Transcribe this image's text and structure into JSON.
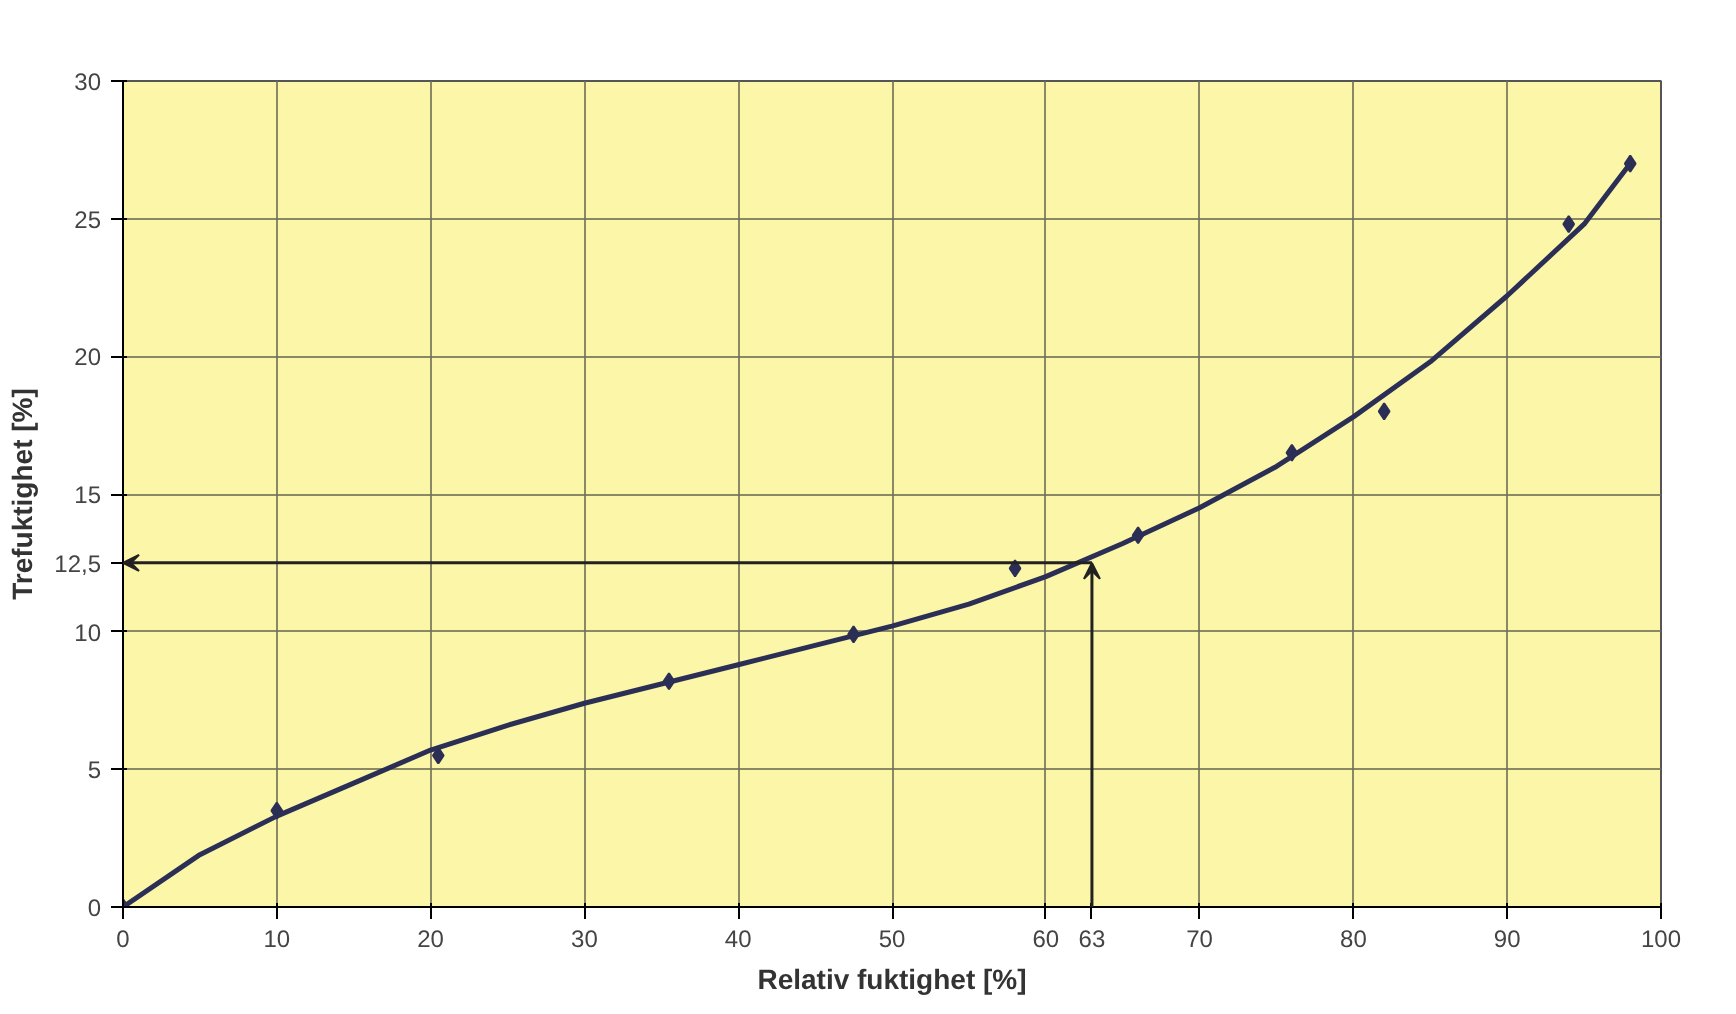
{
  "chart_data": {
    "type": "scatter",
    "xlabel": "Relativ fuktighet [%]",
    "ylabel": "Trefuktighet [%]",
    "x": [
      0,
      10,
      20.5,
      35.5,
      47.5,
      58,
      66,
      76,
      82,
      94,
      98
    ],
    "series": [
      {
        "color": "#2b2f55",
        "marker": "diamond",
        "values": [
          0,
          3.5,
          5.5,
          8.2,
          9.9,
          12.3,
          13.5,
          16.5,
          18,
          24.8,
          27
        ]
      },
      {
        "type": "line",
        "color": "#2b2f55",
        "x": [
          0,
          5,
          10,
          15,
          20,
          25,
          30,
          35,
          40,
          45,
          50,
          55,
          60,
          65,
          70,
          75,
          80,
          85,
          90,
          95,
          98
        ],
        "values": [
          0,
          1.9,
          3.3,
          4.5,
          5.7,
          6.6,
          7.4,
          8.1,
          8.8,
          9.5,
          10.2,
          11.0,
          12.0,
          13.2,
          14.5,
          16.0,
          17.8,
          19.8,
          22.2,
          24.8,
          27.0
        ]
      }
    ],
    "xlim": [
      0,
      100
    ],
    "ylim": [
      0,
      30
    ],
    "xticks": [
      0,
      10,
      20,
      30,
      40,
      50,
      60,
      {
        "value": 63,
        "label": "63"
      },
      70,
      80,
      90,
      100
    ],
    "yticks": [
      0,
      5,
      10,
      {
        "value": 12.5,
        "label": "12,5"
      },
      15,
      20,
      25,
      30
    ],
    "grid": true,
    "line_style": "solid"
  }
}
